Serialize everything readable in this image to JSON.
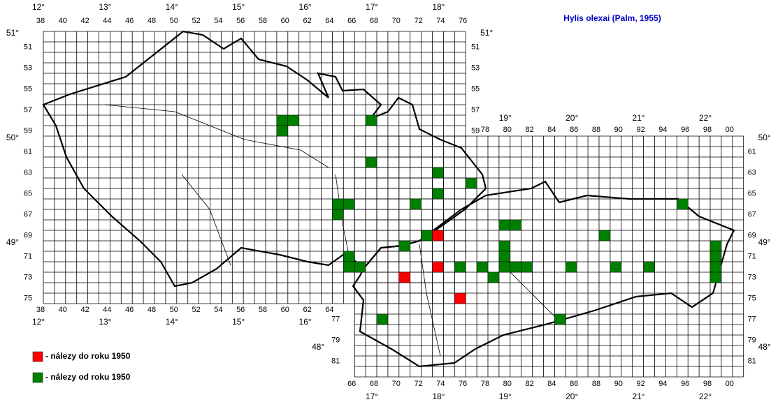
{
  "title": "Hylis olexai (Palm, 1955)",
  "legend": [
    {
      "label": "- nálezy do roku 1950",
      "color": "#ff0000"
    },
    {
      "label": "- nálezy od roku 1950",
      "color": "#008000"
    }
  ],
  "column_labels": [
    38,
    40,
    42,
    44,
    46,
    48,
    50,
    52,
    54,
    56,
    58,
    60,
    62,
    64,
    66,
    68,
    70,
    72,
    74,
    76,
    78,
    80,
    82,
    84,
    86,
    88,
    90,
    92,
    94,
    96,
    98,
    {
      "value": 100,
      "label": "00"
    }
  ],
  "row_labels": [
    51,
    53,
    55,
    57,
    59,
    61,
    63,
    65,
    67,
    69,
    71,
    73,
    75,
    77,
    79,
    81
  ],
  "longitudes": [
    "12°",
    "13°",
    "14°",
    "15°",
    "16°",
    "17°",
    "18°",
    "19°",
    "20°",
    "21°",
    "22°"
  ],
  "latitudes": [
    "51°",
    "50°",
    "49°",
    "48°"
  ],
  "records": {
    "before_1950": [
      [
        73,
        69
      ],
      [
        73,
        72
      ],
      [
        70,
        73
      ],
      [
        75,
        75
      ]
    ],
    "since_1950": [
      [
        59,
        58
      ],
      [
        60,
        58
      ],
      [
        59,
        59
      ],
      [
        67,
        58
      ],
      [
        67,
        62
      ],
      [
        73,
        63
      ],
      [
        76,
        64
      ],
      [
        73,
        65
      ],
      [
        64,
        66
      ],
      [
        65,
        66
      ],
      [
        64,
        67
      ],
      [
        71,
        66
      ],
      [
        95,
        66
      ],
      [
        79,
        68
      ],
      [
        80,
        68
      ],
      [
        88,
        69
      ],
      [
        72,
        69
      ],
      [
        70,
        70
      ],
      [
        79,
        70
      ],
      [
        98,
        70
      ],
      [
        98,
        71
      ],
      [
        98,
        72
      ],
      [
        98,
        73
      ],
      [
        65,
        71
      ],
      [
        65,
        72
      ],
      [
        66,
        72
      ],
      [
        79,
        71
      ],
      [
        75,
        72
      ],
      [
        77,
        72
      ],
      [
        79,
        72
      ],
      [
        80,
        72
      ],
      [
        81,
        72
      ],
      [
        85,
        72
      ],
      [
        89,
        72
      ],
      [
        92,
        72
      ],
      [
        78,
        73
      ],
      [
        68,
        77
      ],
      [
        84,
        77
      ]
    ]
  }
}
